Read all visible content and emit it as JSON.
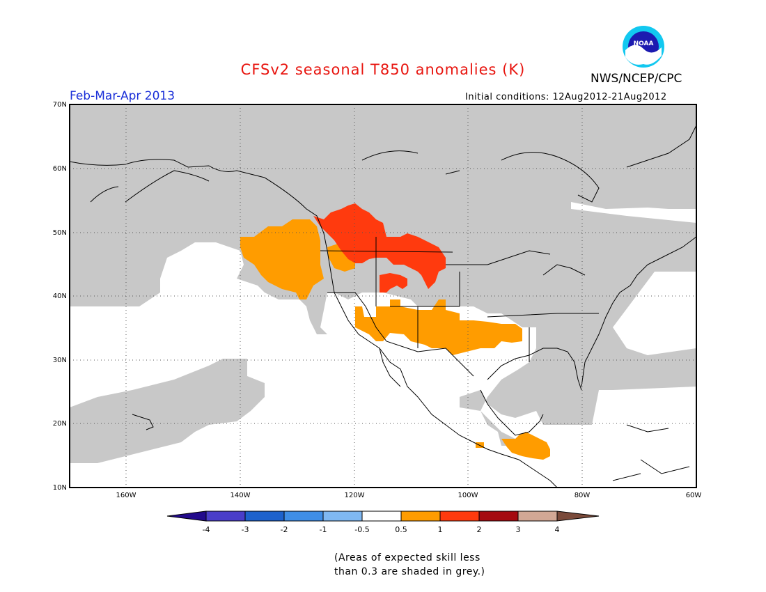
{
  "header": {
    "title": "CFSv2 seasonal T850 anomalies (K)",
    "agency": "NWS/NCEP/CPC",
    "logo_text": "NOAA",
    "season": "Feb-Mar-Apr 2013",
    "initial_conditions": "Initial conditions: 12Aug2012-21Aug2012"
  },
  "map": {
    "lat_labels": [
      "70N",
      "60N",
      "50N",
      "40N",
      "30N",
      "20N",
      "10N"
    ],
    "lon_labels": [
      "160W",
      "140W",
      "120W",
      "100W",
      "80W",
      "60W"
    ]
  },
  "colorbar": {
    "labels": [
      "-4",
      "-3",
      "-2",
      "-1",
      "-0.5",
      "0.5",
      "1",
      "2",
      "3",
      "4"
    ],
    "colors": [
      "#220a8c",
      "#4a3ec9",
      "#1e62cc",
      "#3f8ee6",
      "#7fb8f2",
      "#ffffff",
      "#ff9c00",
      "#ff3a0e",
      "#a50a10",
      "#d2a895",
      "#7a4a3a"
    ]
  },
  "note": {
    "line1": "(Areas of expected skill less",
    "line2": "than 0.3 are shaded in grey.)"
  },
  "colors": {
    "grey_low_skill": "#c8c8c8",
    "anomaly_0_5_to_1": "#ff9c00",
    "anomaly_1_to_2": "#ff3a0e"
  }
}
